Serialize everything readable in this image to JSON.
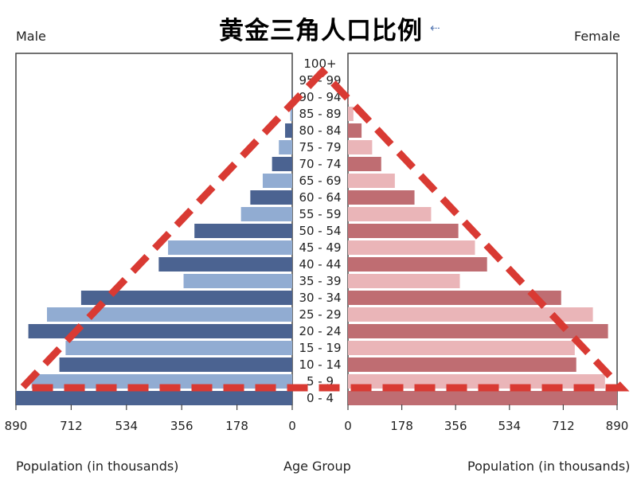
{
  "title": "黄金三角人口比例",
  "colors": {
    "male_dark": "#4b6391",
    "male_light": "#91acd2",
    "female_dark": "#bf6d72",
    "female_light": "#eab5b8",
    "triangle": "#d93a33"
  },
  "chart_data": {
    "type": "bar",
    "subtype": "population-pyramid",
    "title": "黄金三角人口比例",
    "left_label": "Male",
    "right_label": "Female",
    "xlabel_left": "Population (in thousands)",
    "xlabel_center": "Age Group",
    "xlabel_right": "Population (in thousands)",
    "xlim": [
      0,
      890
    ],
    "xticks": [
      "890",
      "712",
      "534",
      "356",
      "178",
      "0"
    ],
    "xticks_right": [
      "0",
      "178",
      "356",
      "534",
      "712",
      "890"
    ],
    "categories": [
      "100+",
      "95 - 99",
      "90 - 94",
      "85 - 89",
      "80 - 84",
      "75 - 79",
      "70 - 74",
      "65 - 69",
      "60 - 64",
      "55 - 59",
      "50 - 54",
      "45 - 49",
      "40 - 44",
      "35 - 39",
      "30 - 34",
      "25 - 29",
      "20 - 24",
      "15 - 19",
      "10 - 14",
      "5 - 9",
      "0 - 4"
    ],
    "series": [
      {
        "name": "Male",
        "values": [
          0,
          0,
          2,
          6,
          23,
          43,
          65,
          95,
          135,
          165,
          315,
          400,
          430,
          350,
          680,
          790,
          850,
          730,
          750,
          840,
          890
        ]
      },
      {
        "name": "Female",
        "values": [
          0,
          0,
          2,
          18,
          45,
          80,
          110,
          155,
          220,
          275,
          365,
          420,
          460,
          370,
          705,
          810,
          860,
          750,
          755,
          850,
          890
        ]
      }
    ],
    "annotation": "red dashed triangle overlay"
  }
}
